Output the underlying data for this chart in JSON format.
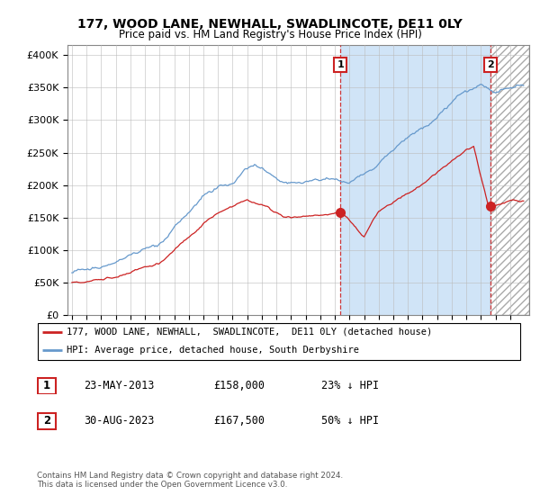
{
  "title": "177, WOOD LANE, NEWHALL, SWADLINCOTE, DE11 0LY",
  "subtitle": "Price paid vs. HM Land Registry's House Price Index (HPI)",
  "ylabel_ticks": [
    "£0",
    "£50K",
    "£100K",
    "£150K",
    "£200K",
    "£250K",
    "£300K",
    "£350K",
    "£400K"
  ],
  "ytick_values": [
    0,
    50000,
    100000,
    150000,
    200000,
    250000,
    300000,
    350000,
    400000
  ],
  "ylim": [
    0,
    415000
  ],
  "xlim_start": 1994.7,
  "xlim_end": 2026.3,
  "hpi_color": "#6699cc",
  "hpi_fill_color": "#d0e4f7",
  "price_color": "#cc2222",
  "marker1_date": 2013.38,
  "marker1_price": 158000,
  "marker2_date": 2023.66,
  "marker2_price": 167500,
  "legend_line1": "177, WOOD LANE, NEWHALL,  SWADLINCOTE,  DE11 0LY (detached house)",
  "legend_line2": "HPI: Average price, detached house, South Derbyshire",
  "table_row1": [
    "1",
    "23-MAY-2013",
    "£158,000",
    "23% ↓ HPI"
  ],
  "table_row2": [
    "2",
    "30-AUG-2023",
    "£167,500",
    "50% ↓ HPI"
  ],
  "footer": "Contains HM Land Registry data © Crown copyright and database right 2024.\nThis data is licensed under the Open Government Licence v3.0.",
  "grid_color": "#bbbbbb",
  "hatch_color": "#aaaaaa"
}
